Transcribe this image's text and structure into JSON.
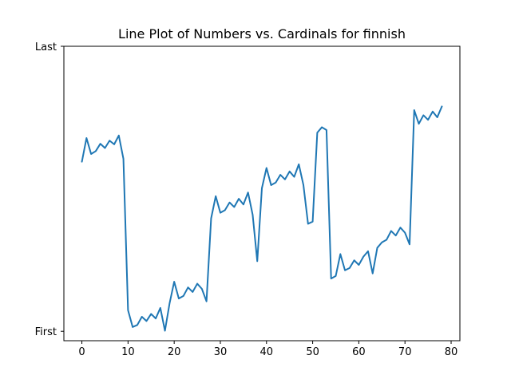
{
  "chart_data": {
    "type": "line",
    "title": "Line Plot of Numbers vs. Cardinals for finnish",
    "xlabel": "",
    "ylabel": "",
    "xlim": [
      -3.9,
      81.9
    ],
    "ylim": [
      -0.033,
      1.0
    ],
    "xticks": [
      0,
      10,
      20,
      30,
      40,
      50,
      60,
      70,
      80
    ],
    "yticks": [
      {
        "value": 0,
        "label": "First"
      },
      {
        "value": 1,
        "label": "Last"
      }
    ],
    "grid": false,
    "series": [
      {
        "color": "#1f77b4",
        "x": [
          0,
          1,
          2,
          3,
          4,
          5,
          6,
          7,
          8,
          9,
          10,
          11,
          12,
          13,
          14,
          15,
          16,
          17,
          18,
          19,
          20,
          21,
          22,
          23,
          24,
          25,
          26,
          27,
          28,
          29,
          30,
          31,
          32,
          33,
          34,
          35,
          36,
          37,
          38,
          39,
          40,
          41,
          42,
          43,
          44,
          45,
          46,
          47,
          48,
          49,
          50,
          51,
          52,
          53,
          54,
          55,
          56,
          57,
          58,
          59,
          60,
          61,
          62,
          63,
          64,
          65,
          66,
          67,
          68,
          69,
          70,
          71,
          72,
          73,
          74,
          75,
          76,
          77,
          78
        ],
        "y": [
          0.595,
          0.678,
          0.622,
          0.632,
          0.658,
          0.643,
          0.669,
          0.656,
          0.687,
          0.605,
          0.074,
          0.015,
          0.022,
          0.051,
          0.036,
          0.061,
          0.045,
          0.082,
          0.002,
          0.098,
          0.174,
          0.115,
          0.124,
          0.154,
          0.138,
          0.167,
          0.149,
          0.105,
          0.396,
          0.474,
          0.416,
          0.425,
          0.452,
          0.436,
          0.465,
          0.445,
          0.487,
          0.409,
          0.246,
          0.502,
          0.573,
          0.513,
          0.522,
          0.549,
          0.533,
          0.561,
          0.542,
          0.586,
          0.513,
          0.377,
          0.385,
          0.697,
          0.716,
          0.706,
          0.185,
          0.194,
          0.271,
          0.214,
          0.222,
          0.249,
          0.233,
          0.262,
          0.281,
          0.203,
          0.293,
          0.312,
          0.321,
          0.352,
          0.336,
          0.364,
          0.346,
          0.305,
          0.776,
          0.728,
          0.758,
          0.742,
          0.771,
          0.751,
          0.789
        ]
      }
    ]
  }
}
